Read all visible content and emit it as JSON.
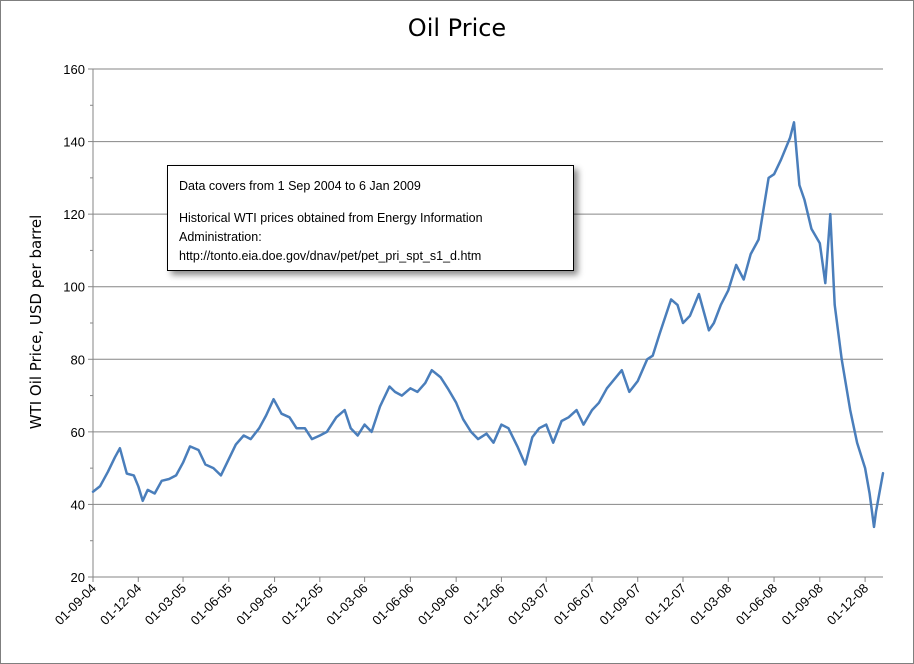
{
  "chart_data": {
    "type": "line",
    "title": "Oil Price",
    "ylabel": "WTI Oil Price, USD per barrel",
    "xlabel": "",
    "ylim": [
      20,
      160
    ],
    "yticks": [
      20,
      40,
      60,
      80,
      100,
      120,
      140,
      160
    ],
    "xlim": [
      "2004-09-01",
      "2009-01-06"
    ],
    "xtick_labels": [
      "01-09-04",
      "01-12-04",
      "01-03-05",
      "01-06-05",
      "01-09-05",
      "01-12-05",
      "01-03-06",
      "01-06-06",
      "01-09-06",
      "01-12-06",
      "01-03-07",
      "01-06-07",
      "01-09-07",
      "01-12-07",
      "01-03-08",
      "01-06-08",
      "01-09-08",
      "01-12-08"
    ],
    "xtick_dates": [
      "2004-09-01",
      "2004-12-01",
      "2005-03-01",
      "2005-06-01",
      "2005-09-01",
      "2005-12-01",
      "2006-03-01",
      "2006-06-01",
      "2006-09-01",
      "2006-12-01",
      "2007-03-01",
      "2007-06-01",
      "2007-09-01",
      "2007-12-01",
      "2008-03-01",
      "2008-06-01",
      "2008-09-01",
      "2008-12-01"
    ],
    "grid": true,
    "legend": "none",
    "series_color": "#4a7ebb",
    "series": [
      {
        "x": [
          "2004-09-01",
          "2004-09-15",
          "2004-10-01",
          "2004-10-15",
          "2004-10-25",
          "2004-11-08",
          "2004-11-22",
          "2004-12-01",
          "2004-12-10",
          "2004-12-20",
          "2005-01-03",
          "2005-01-17",
          "2005-02-01",
          "2005-02-15",
          "2005-03-01",
          "2005-03-15",
          "2005-04-01",
          "2005-04-15",
          "2005-05-01",
          "2005-05-16",
          "2005-06-01",
          "2005-06-15",
          "2005-07-01",
          "2005-07-15",
          "2005-08-01",
          "2005-08-15",
          "2005-08-30",
          "2005-09-15",
          "2005-10-01",
          "2005-10-15",
          "2005-11-01",
          "2005-11-15",
          "2005-12-01",
          "2005-12-15",
          "2006-01-03",
          "2006-01-20",
          "2006-02-01",
          "2006-02-15",
          "2006-03-01",
          "2006-03-15",
          "2006-04-01",
          "2006-04-20",
          "2006-05-01",
          "2006-05-15",
          "2006-06-01",
          "2006-06-15",
          "2006-07-01",
          "2006-07-14",
          "2006-08-01",
          "2006-08-15",
          "2006-09-01",
          "2006-09-15",
          "2006-10-01",
          "2006-10-15",
          "2006-11-01",
          "2006-11-15",
          "2006-12-01",
          "2006-12-15",
          "2007-01-02",
          "2007-01-18",
          "2007-02-01",
          "2007-02-15",
          "2007-03-01",
          "2007-03-15",
          "2007-04-01",
          "2007-04-15",
          "2007-05-01",
          "2007-05-15",
          "2007-06-01",
          "2007-06-15",
          "2007-07-01",
          "2007-07-31",
          "2007-08-15",
          "2007-09-01",
          "2007-09-20",
          "2007-10-01",
          "2007-10-15",
          "2007-11-07",
          "2007-11-20",
          "2007-12-01",
          "2007-12-15",
          "2008-01-02",
          "2008-01-22",
          "2008-02-01",
          "2008-02-15",
          "2008-03-01",
          "2008-03-17",
          "2008-04-01",
          "2008-04-15",
          "2008-05-01",
          "2008-05-21",
          "2008-06-01",
          "2008-06-15",
          "2008-07-03",
          "2008-07-11",
          "2008-07-22",
          "2008-08-01",
          "2008-08-15",
          "2008-09-01",
          "2008-09-12",
          "2008-09-22",
          "2008-10-01",
          "2008-10-15",
          "2008-11-01",
          "2008-11-15",
          "2008-12-01",
          "2008-12-10",
          "2008-12-19",
          "2008-12-23",
          "2009-01-06"
        ],
        "values": [
          43.5,
          45,
          49,
          53,
          55.5,
          48.5,
          48,
          45,
          41,
          44,
          43,
          46.5,
          47,
          48,
          51.5,
          56,
          55,
          51,
          50,
          48,
          52.5,
          56.5,
          59,
          58,
          61,
          64.5,
          69,
          65,
          64,
          61,
          61,
          58,
          59,
          60,
          64,
          66,
          61,
          59,
          62,
          60,
          67,
          72.5,
          71,
          70,
          72,
          71,
          73.5,
          77,
          75,
          72,
          68,
          63.5,
          60,
          58,
          59.5,
          57,
          62,
          61,
          56,
          51,
          58.5,
          61,
          62,
          57,
          63,
          64,
          66,
          62,
          66,
          68,
          72,
          77,
          71,
          74,
          80,
          81,
          87,
          96.5,
          95,
          90,
          92,
          98,
          88,
          90,
          95,
          99,
          106,
          102,
          109,
          113,
          130,
          131,
          135,
          141,
          145.3,
          128,
          124,
          116,
          112,
          101,
          120,
          95,
          80,
          66,
          57,
          50,
          43,
          33.8,
          38,
          48.6
        ]
      }
    ]
  },
  "note": {
    "line1": "Data covers from 1 Sep 2004 to 6 Jan 2009",
    "line2": "Historical WTI prices obtained from Energy Information",
    "line3": "Administration:",
    "line4": "http://tonto.eia.doe.gov/dnav/pet/pet_pri_spt_s1_d.htm"
  }
}
